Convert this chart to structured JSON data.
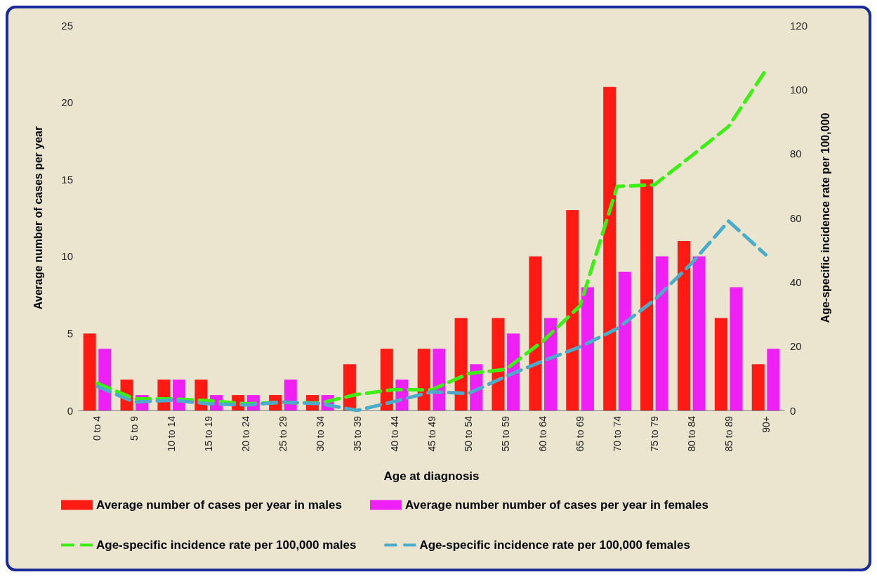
{
  "chart_data": {
    "type": "bar",
    "xlabel": "Age at diagnosis",
    "ylabel": "Average number of cases per year",
    "y2label": "Age-specific incidence rate per 100,000",
    "categories": [
      "0 to 4",
      "5 to 9",
      "10 to 14",
      "15 to 19",
      "20 to 24",
      "25 to 29",
      "30 to 34",
      "35 to 39",
      "40 to 44",
      "45 to 49",
      "50 to 54",
      "55 to 59",
      "60 to 64",
      "65 to 69",
      "70 to 74",
      "75 to 79",
      "80 to 84",
      "85 to 89",
      "90+"
    ],
    "series": [
      {
        "name": "Average number of cases per year in males",
        "color": "#ff1a14",
        "values": [
          5,
          2,
          2,
          2,
          1,
          1,
          1,
          3,
          4,
          4,
          6,
          6,
          10,
          13,
          21,
          15,
          11,
          6,
          3
        ]
      },
      {
        "name": "Average number number of cases per year in females",
        "color": "#ee20f5",
        "values": [
          4,
          1,
          2,
          1,
          1,
          2,
          1,
          0,
          2,
          4,
          3,
          5,
          6,
          8,
          9,
          10,
          10,
          8,
          4
        ]
      },
      {
        "name": "Age-specific incidence rate per 100,000 males",
        "type": "line",
        "axis": "y2",
        "color": "#3cf014",
        "line_style": "dashed",
        "values": [
          8.5,
          3.6,
          3.6,
          3,
          2.1,
          2.5,
          2.3,
          5,
          6.5,
          6.4,
          11.5,
          12.8,
          21.6,
          32.6,
          69.8,
          70.3,
          79.3,
          88.5,
          106
        ]
      },
      {
        "name": "Age-specific incidence rate per 100,000 females",
        "type": "line",
        "axis": "y2",
        "color": "#4aacc8",
        "line_style": "dashed",
        "values": [
          7.5,
          2.6,
          3.2,
          2.1,
          1.7,
          2.6,
          2.1,
          0,
          2.8,
          5.8,
          5.3,
          10.6,
          15.4,
          19.8,
          25.5,
          34.4,
          45.8,
          59,
          48.5
        ]
      }
    ],
    "ylim": [
      0,
      25
    ],
    "yticks": [
      0,
      5,
      10,
      15,
      20,
      25
    ],
    "y2lim": [
      0,
      120
    ],
    "y2ticks": [
      0,
      20,
      40,
      60,
      80,
      100,
      120
    ],
    "grid": false,
    "legend": "bottom",
    "marker": "none"
  }
}
